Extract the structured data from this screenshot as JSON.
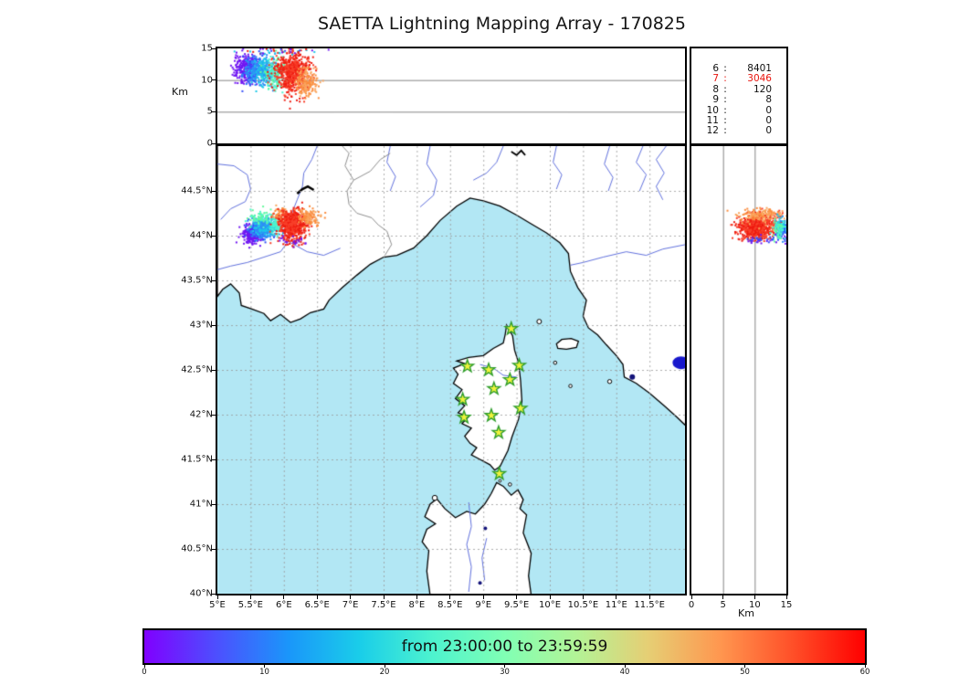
{
  "title": "SAETTA Lightning Mapping Array - 170825",
  "stats": {
    "rows": [
      {
        "label": "6",
        "sep": ":",
        "value": "8401",
        "color": "#111111"
      },
      {
        "label": "7",
        "sep": ":",
        "value": "3046",
        "color": "#e8130c"
      },
      {
        "label": "8",
        "sep": ":",
        "value": "120",
        "color": "#111111"
      },
      {
        "label": "9",
        "sep": ":",
        "value": "8",
        "color": "#111111"
      },
      {
        "label": "10",
        "sep": ":",
        "value": "0",
        "color": "#111111"
      },
      {
        "label": "11",
        "sep": ":",
        "value": "0",
        "color": "#111111"
      },
      {
        "label": "12",
        "sep": ":",
        "value": "0",
        "color": "#111111"
      }
    ]
  },
  "axes": {
    "top": {
      "ylabel": "Km",
      "yticks": [
        {
          "v": 15,
          "t": "15"
        },
        {
          "v": 10,
          "t": "10"
        },
        {
          "v": 5,
          "t": "5"
        },
        {
          "v": 0,
          "t": "0"
        }
      ],
      "gridlines_y": [
        5,
        10
      ]
    },
    "map": {
      "xticks": [
        {
          "v": 5,
          "t": "5°E"
        },
        {
          "v": 5.5,
          "t": "5.5°E"
        },
        {
          "v": 6,
          "t": "6°E"
        },
        {
          "v": 6.5,
          "t": "6.5°E"
        },
        {
          "v": 7,
          "t": "7°E"
        },
        {
          "v": 7.5,
          "t": "7.5°E"
        },
        {
          "v": 8,
          "t": "8°E"
        },
        {
          "v": 8.5,
          "t": "8.5°E"
        },
        {
          "v": 9,
          "t": "9°E"
        },
        {
          "v": 9.5,
          "t": "9.5°E"
        },
        {
          "v": 10,
          "t": "10°E"
        },
        {
          "v": 10.5,
          "t": "10.5°E"
        },
        {
          "v": 11,
          "t": "11°E"
        },
        {
          "v": 11.5,
          "t": "11.5°E"
        }
      ],
      "yticks": [
        {
          "v": 44.5,
          "t": "44.5°N"
        },
        {
          "v": 44,
          "t": "44°N"
        },
        {
          "v": 43.5,
          "t": "43.5°N"
        },
        {
          "v": 43,
          "t": "43°N"
        },
        {
          "v": 42.5,
          "t": "42.5°N"
        },
        {
          "v": 42,
          "t": "42°N"
        },
        {
          "v": 41.5,
          "t": "41.5°N"
        },
        {
          "v": 41,
          "t": "41°N"
        },
        {
          "v": 40.5,
          "t": "40.5°N"
        },
        {
          "v": 40,
          "t": "40°N"
        }
      ]
    },
    "right": {
      "xlabel": "Km",
      "xticks": [
        {
          "v": 0,
          "t": "0"
        },
        {
          "v": 5,
          "t": "5"
        },
        {
          "v": 10,
          "t": "10"
        },
        {
          "v": 15,
          "t": "15"
        }
      ],
      "gridlines_x": [
        5,
        10
      ]
    }
  },
  "colorbar": {
    "label": "from 23:00:00 to 23:59:59",
    "min": 0,
    "max": 60,
    "ticks": [
      {
        "v": 0,
        "t": "0"
      },
      {
        "v": 10,
        "t": "10"
      },
      {
        "v": 20,
        "t": "20"
      },
      {
        "v": 30,
        "t": "30"
      },
      {
        "v": 40,
        "t": "40"
      },
      {
        "v": 50,
        "t": "50"
      },
      {
        "v": 60,
        "t": "60"
      }
    ],
    "stops": [
      "#8000ff",
      "#4d4ffe",
      "#1a96fa",
      "#1acee9",
      "#4df3ce",
      "#80ffb4",
      "#b3f396",
      "#e6ce74",
      "#ff964f",
      "#ff4f28",
      "#ff0000"
    ]
  },
  "palette": {
    "purple": "#7016f2",
    "blue": "#334ef9",
    "skyblue": "#2e8df6",
    "cyan": "#1ec8e8",
    "mint": "#4df3ce",
    "green": "#63fa9c",
    "red": "#ee1b10",
    "red2": "#f8402a",
    "orange": "#f9a45c",
    "darkorange": "#fb8b3c"
  },
  "map_colors": {
    "sea": "#b2e7f4",
    "land": "#ffffff",
    "coast": "#000000",
    "river": "#6272de",
    "border": "#909090",
    "lake": "#1818cc",
    "darklake": "#14147a",
    "grid": "#999999"
  },
  "station_style": {
    "fill": "#eff23d",
    "stroke": "#2f9e2b"
  },
  "chart_data": [
    {
      "id": "lon-altitude-panel",
      "type": "scatter",
      "x_range": [
        5,
        12.03
      ],
      "y_range": [
        0,
        15
      ],
      "ylabel": "Km",
      "clusters": [
        {
          "n": 240,
          "cx": 5.42,
          "cy": 11.9,
          "sx": 0.08,
          "sy": 1.1,
          "colors": [
            "purple"
          ]
        },
        {
          "n": 200,
          "cx": 5.55,
          "cy": 11.6,
          "sx": 0.08,
          "sy": 1.1,
          "colors": [
            "blue",
            "skyblue"
          ]
        },
        {
          "n": 300,
          "cx": 5.7,
          "cy": 11.3,
          "sx": 0.1,
          "sy": 1.1,
          "colors": [
            "cyan",
            "skyblue"
          ]
        },
        {
          "n": 150,
          "cx": 5.88,
          "cy": 11.0,
          "sx": 0.08,
          "sy": 1.2,
          "colors": [
            "mint",
            "green"
          ]
        },
        {
          "n": 620,
          "cx": 6.12,
          "cy": 11.1,
          "sx": 0.13,
          "sy": 1.6,
          "colors": [
            "red",
            "red2"
          ]
        },
        {
          "n": 170,
          "cx": 6.34,
          "cy": 9.8,
          "sx": 0.08,
          "sy": 1.1,
          "colors": [
            "orange",
            "darkorange"
          ]
        },
        {
          "n": 45,
          "cx": 5.95,
          "cy": 14.5,
          "sx": 0.28,
          "sy": 0.3,
          "colors": [
            "blue",
            "red",
            "cyan",
            "purple"
          ]
        }
      ]
    },
    {
      "id": "map-panel",
      "type": "scatter",
      "x_range": [
        5,
        12.03
      ],
      "y_range": [
        40,
        45
      ],
      "stations": [
        [
          9.42,
          42.96
        ],
        [
          8.76,
          42.54
        ],
        [
          9.08,
          42.5
        ],
        [
          9.54,
          42.55
        ],
        [
          9.4,
          42.39
        ],
        [
          9.16,
          42.29
        ],
        [
          8.69,
          42.17
        ],
        [
          9.56,
          42.07
        ],
        [
          9.12,
          41.99
        ],
        [
          8.71,
          41.97
        ],
        [
          9.23,
          41.8
        ],
        [
          9.24,
          41.34
        ]
      ],
      "clusters": [
        {
          "n": 250,
          "cx": 5.52,
          "cy": 44.02,
          "sx": 0.075,
          "sy": 0.05,
          "colors": [
            "purple"
          ]
        },
        {
          "n": 200,
          "cx": 5.62,
          "cy": 44.06,
          "sx": 0.07,
          "sy": 0.05,
          "colors": [
            "blue",
            "skyblue"
          ]
        },
        {
          "n": 300,
          "cx": 5.73,
          "cy": 44.09,
          "sx": 0.08,
          "sy": 0.05,
          "colors": [
            "cyan",
            "skyblue"
          ]
        },
        {
          "n": 80,
          "cx": 5.65,
          "cy": 44.2,
          "sx": 0.1,
          "sy": 0.04,
          "colors": [
            "mint",
            "green"
          ]
        },
        {
          "n": 90,
          "cx": 5.88,
          "cy": 44.12,
          "sx": 0.06,
          "sy": 0.05,
          "colors": [
            "mint"
          ]
        },
        {
          "n": 100,
          "cx": 5.97,
          "cy": 44.22,
          "sx": 0.07,
          "sy": 0.05,
          "colors": [
            "orange",
            "darkorange"
          ]
        },
        {
          "n": 620,
          "cx": 6.13,
          "cy": 44.12,
          "sx": 0.11,
          "sy": 0.08,
          "colors": [
            "red",
            "red2"
          ]
        },
        {
          "n": 120,
          "cx": 6.38,
          "cy": 44.2,
          "sx": 0.08,
          "sy": 0.05,
          "colors": [
            "orange",
            "darkorange"
          ]
        },
        {
          "n": 40,
          "cx": 6.1,
          "cy": 43.93,
          "sx": 0.12,
          "sy": 0.035,
          "colors": [
            "red",
            "purple"
          ]
        }
      ]
    },
    {
      "id": "altitude-lat-panel",
      "type": "scatter",
      "x_range": [
        0,
        15
      ],
      "y_range": [
        40,
        45
      ],
      "xlabel": "Km",
      "clusters": [
        {
          "n": 650,
          "cx": 10.4,
          "cy": 44.09,
          "sx": 1.5,
          "sy": 0.065,
          "colors": [
            "red",
            "red2"
          ]
        },
        {
          "n": 140,
          "cx": 10.8,
          "cy": 44.23,
          "sx": 1.7,
          "sy": 0.035,
          "colors": [
            "orange",
            "darkorange"
          ]
        },
        {
          "n": 60,
          "cx": 12.9,
          "cy": 44.18,
          "sx": 1.2,
          "sy": 0.05,
          "colors": [
            "orange",
            "red2"
          ]
        },
        {
          "n": 45,
          "cx": 14.2,
          "cy": 44.02,
          "sx": 0.6,
          "sy": 0.05,
          "colors": [
            "purple",
            "blue"
          ]
        },
        {
          "n": 55,
          "cx": 14.4,
          "cy": 44.08,
          "sx": 0.55,
          "sy": 0.05,
          "colors": [
            "blue",
            "skyblue"
          ]
        },
        {
          "n": 60,
          "cx": 14.1,
          "cy": 44.12,
          "sx": 0.6,
          "sy": 0.05,
          "colors": [
            "cyan",
            "mint"
          ]
        },
        {
          "n": 45,
          "cx": 13.9,
          "cy": 44.05,
          "sx": 0.55,
          "sy": 0.06,
          "colors": [
            "green",
            "mint"
          ]
        },
        {
          "n": 30,
          "cx": 10.8,
          "cy": 43.95,
          "sx": 1.2,
          "sy": 0.02,
          "colors": [
            "purple",
            "blue"
          ]
        }
      ]
    },
    {
      "id": "time-colorbar",
      "type": "colorbar",
      "range": [
        0,
        60
      ],
      "label": "from 23:00:00 to 23:59:59"
    }
  ]
}
